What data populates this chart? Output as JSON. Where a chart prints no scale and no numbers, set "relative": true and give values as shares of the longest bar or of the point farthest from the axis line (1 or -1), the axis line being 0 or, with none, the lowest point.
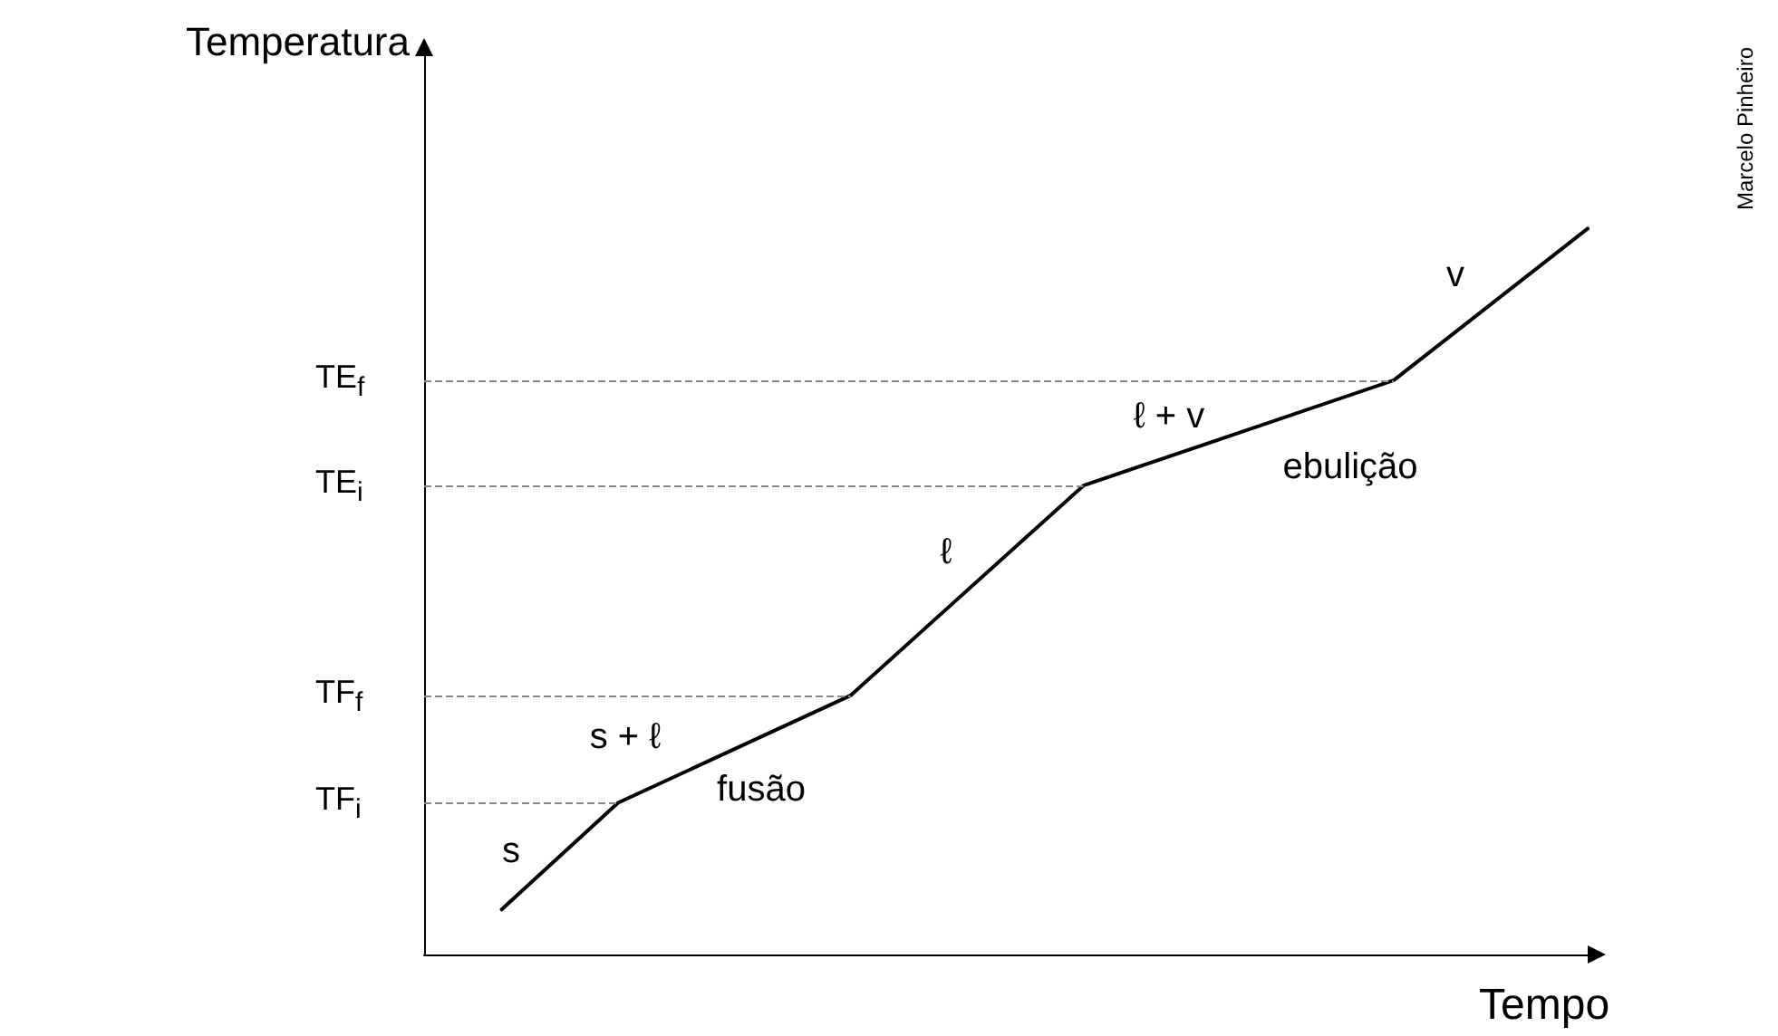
{
  "chart_data": {
    "type": "line",
    "xlabel": "Tempo",
    "ylabel": "Temperatura",
    "relative": true,
    "marker": "none",
    "color": "#000000",
    "categories": [
      null,
      null,
      null,
      null,
      null,
      null,
      null,
      null,
      null,
      null,
      null,
      null,
      null,
      null,
      null,
      null,
      null,
      null,
      null,
      null,
      null,
      null,
      null,
      null,
      null,
      null,
      null,
      null,
      null,
      null,
      null
    ],
    "values": [
      null,
      null,
      0.062,
      null,
      null,
      0.209,
      null,
      null,
      null,
      null,
      null,
      0.357,
      null,
      null,
      null,
      null,
      null,
      0.646,
      null,
      null,
      null,
      null,
      null,
      null,
      null,
      0.791,
      null,
      null,
      null,
      null,
      1
    ],
    "ref_lines": [
      {
        "axis": "y",
        "value": 0.209,
        "label": "TF$_{i}$",
        "line_style": "dashed",
        "color": "#888888"
      },
      {
        "axis": "y",
        "value": 0.357,
        "label": "TF$_{f}$",
        "line_style": "dashed",
        "color": "#888888"
      },
      {
        "axis": "y",
        "value": 0.646,
        "label": "TE$_{i}$",
        "line_style": "dashed",
        "color": "#888888"
      },
      {
        "axis": "y",
        "value": 0.791,
        "label": "TE$_{f}$",
        "line_style": "dashed",
        "color": "#888888"
      }
    ],
    "annotations": [
      "s",
      "s + ℓ",
      "fusão",
      "ℓ",
      "ℓ + v",
      "ebulição",
      "v",
      "Marcelo Pinheiro"
    ]
  }
}
